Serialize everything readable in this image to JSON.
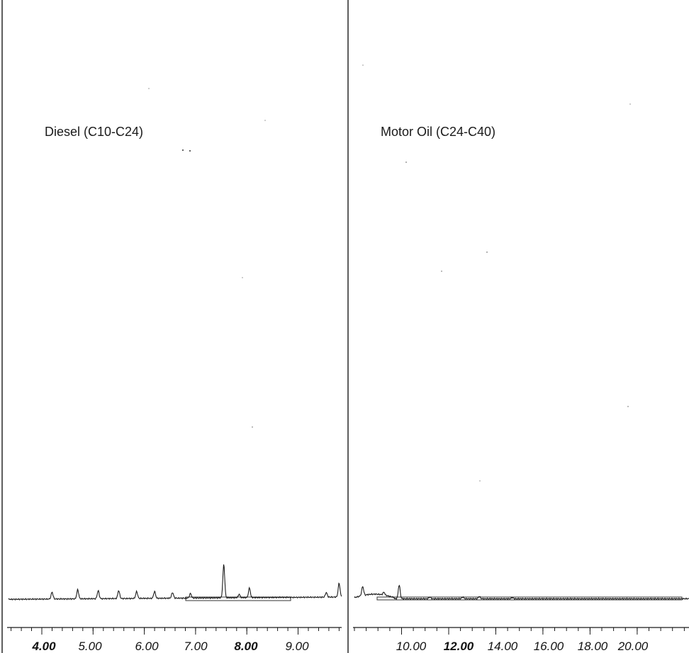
{
  "chart_data": [
    {
      "type": "line",
      "title": "Diesel (C10-C24)",
      "xlabel": "",
      "ylabel": "",
      "xlim": [
        3.35,
        9.85
      ],
      "ticks": [
        "4.00",
        "5.00",
        "6.00",
        "7.00",
        "8.00",
        "9.00"
      ],
      "tick_values": [
        4,
        5,
        6,
        7,
        8,
        9
      ],
      "grid": false,
      "y_relative_range": [
        0,
        1
      ],
      "peaks": [
        {
          "x": 4.2,
          "y": 0.012
        },
        {
          "x": 4.7,
          "y": 0.016
        },
        {
          "x": 5.1,
          "y": 0.014
        },
        {
          "x": 5.5,
          "y": 0.014
        },
        {
          "x": 5.85,
          "y": 0.012
        },
        {
          "x": 6.2,
          "y": 0.012
        },
        {
          "x": 6.55,
          "y": 0.01
        },
        {
          "x": 6.9,
          "y": 0.008
        },
        {
          "x": 7.55,
          "y": 0.058
        },
        {
          "x": 7.85,
          "y": 0.006
        },
        {
          "x": 8.05,
          "y": 0.017
        },
        {
          "x": 9.55,
          "y": 0.008
        },
        {
          "x": 9.8,
          "y": 0.024
        }
      ]
    },
    {
      "type": "line",
      "title": "Motor Oil (C24-C40)",
      "xlabel": "",
      "ylabel": "",
      "xlim": [
        8.0,
        22.2
      ],
      "ticks": [
        "10.00",
        "12.00",
        "14.00",
        "16.00",
        "18.00",
        "20.00"
      ],
      "tick_values": [
        10,
        12,
        14,
        16,
        18,
        20
      ],
      "grid": false,
      "y_relative_range": [
        0,
        1
      ],
      "peaks": [
        {
          "x": 8.35,
          "y": 0.016
        },
        {
          "x": 9.25,
          "y": 0.005
        },
        {
          "x": 9.9,
          "y": 0.024
        },
        {
          "x": 11.2,
          "y": 0.003
        },
        {
          "x": 12.6,
          "y": 0.003
        },
        {
          "x": 13.3,
          "y": 0.004
        },
        {
          "x": 14.7,
          "y": 0.002
        }
      ]
    }
  ]
}
